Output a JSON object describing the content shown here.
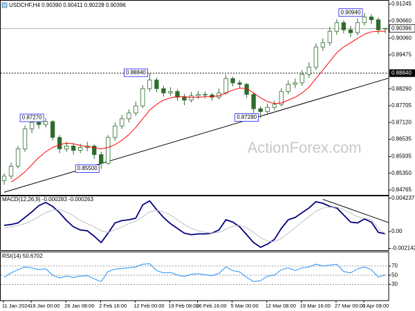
{
  "chart_data": [
    {
      "type": "candlestick",
      "title": "USDCHF,H4 0.90390 0.90411 0.90228 0.90396",
      "open": [
        0.851,
        0.8525,
        0.856,
        0.862,
        0.869,
        0.8712,
        0.8705,
        0.8715,
        0.866,
        0.862,
        0.863,
        0.8615,
        0.8625,
        0.863,
        0.86,
        0.857,
        0.866,
        0.87,
        0.8725,
        0.8745,
        0.877,
        0.883,
        0.886,
        0.883,
        0.8815,
        0.882,
        0.88,
        0.879,
        0.8805,
        0.881,
        0.8808,
        0.88,
        0.8815,
        0.8865,
        0.885,
        0.8845,
        0.881,
        0.876,
        0.875,
        0.8765,
        0.8775,
        0.882,
        0.8845,
        0.885,
        0.888,
        0.8905,
        0.8975,
        0.899,
        0.903,
        0.906,
        0.9035,
        0.9025,
        0.906,
        0.908,
        0.907,
        0.9039
      ],
      "high": [
        0.8535,
        0.8572,
        0.863,
        0.8702,
        0.8722,
        0.872,
        0.8727,
        0.872,
        0.8668,
        0.8645,
        0.864,
        0.8638,
        0.8645,
        0.8636,
        0.861,
        0.8668,
        0.8712,
        0.8738,
        0.8758,
        0.8785,
        0.8842,
        0.8884,
        0.8868,
        0.884,
        0.8835,
        0.8828,
        0.8812,
        0.8818,
        0.8822,
        0.882,
        0.8815,
        0.883,
        0.8878,
        0.8872,
        0.886,
        0.885,
        0.8815,
        0.8768,
        0.8778,
        0.8788,
        0.8832,
        0.8858,
        0.8865,
        0.8895,
        0.8922,
        0.8988,
        0.9005,
        0.9045,
        0.9072,
        0.9068,
        0.9048,
        0.9075,
        0.9094,
        0.909,
        0.9078,
        0.90411
      ],
      "low": [
        0.8495,
        0.8515,
        0.8552,
        0.861,
        0.8675,
        0.869,
        0.8695,
        0.865,
        0.8605,
        0.861,
        0.86,
        0.8605,
        0.8612,
        0.8585,
        0.855,
        0.8565,
        0.8648,
        0.869,
        0.8712,
        0.8735,
        0.8762,
        0.882,
        0.8818,
        0.8802,
        0.8805,
        0.8788,
        0.8772,
        0.8782,
        0.8795,
        0.8796,
        0.8788,
        0.8792,
        0.8808,
        0.8838,
        0.8832,
        0.8798,
        0.8745,
        0.8728,
        0.8738,
        0.8755,
        0.8768,
        0.881,
        0.8832,
        0.884,
        0.8868,
        0.8895,
        0.8962,
        0.898,
        0.9018,
        0.9022,
        0.901,
        0.9015,
        0.905,
        0.9055,
        0.902,
        0.90228
      ],
      "close": [
        0.8525,
        0.856,
        0.862,
        0.869,
        0.8712,
        0.8705,
        0.8715,
        0.866,
        0.862,
        0.863,
        0.8615,
        0.8625,
        0.863,
        0.86,
        0.857,
        0.866,
        0.87,
        0.8725,
        0.8745,
        0.877,
        0.883,
        0.886,
        0.883,
        0.8815,
        0.882,
        0.88,
        0.879,
        0.8805,
        0.881,
        0.8808,
        0.88,
        0.8815,
        0.8865,
        0.885,
        0.8845,
        0.881,
        0.876,
        0.875,
        0.8765,
        0.8775,
        0.882,
        0.8845,
        0.885,
        0.888,
        0.8905,
        0.8975,
        0.899,
        0.903,
        0.906,
        0.9035,
        0.9025,
        0.906,
        0.908,
        0.907,
        0.9035,
        0.90396
      ],
      "up_color": "#ffffff",
      "down_color": "#2e6b2e",
      "outline_color": "#2e6b2e",
      "moving_average": {
        "color": "#ff0000",
        "values": [
          null,
          0.8505,
          0.852,
          0.854,
          0.8565,
          0.859,
          0.861,
          0.8625,
          0.8635,
          0.864,
          0.8638,
          0.8632,
          0.8628,
          0.8625,
          0.862,
          0.8625,
          0.8635,
          0.865,
          0.867,
          0.8695,
          0.8725,
          0.8755,
          0.8775,
          0.879,
          0.8798,
          0.8802,
          0.8802,
          0.88,
          0.88,
          0.8802,
          0.8803,
          0.8805,
          0.8815,
          0.8825,
          0.8832,
          0.883,
          0.8815,
          0.8798,
          0.8785,
          0.8778,
          0.878,
          0.879,
          0.88,
          0.8815,
          0.8835,
          0.8865,
          0.8895,
          0.8925,
          0.8955,
          0.8975,
          0.899,
          0.9005,
          0.902,
          0.9028,
          0.903,
          0.903
        ]
      },
      "ylim": [
        0.84597,
        0.91365
      ],
      "yticks": [
        0.91245,
        {
          "value": 0.9066,
          "label": "0.90660"
        },
        {
          "value": 0.9006,
          "label": "0.90060"
        },
        0.89475,
        {
          "value": 0.8829,
          "label": "0.88290"
        },
        0.87705,
        {
          "value": 0.8712,
          "label": "0.87120"
        },
        0.86535,
        0.85935,
        {
          "value": 0.8535,
          "label": "0.85350"
        },
        0.84765
      ],
      "last_price": 0.90396,
      "horizontal_line": {
        "value": 0.8884,
        "label": "0.88840"
      },
      "annotations": [
        {
          "x": 52,
          "value": 0.9094,
          "label": "0.90940"
        },
        {
          "x": 21,
          "value": 0.8884,
          "label": "0.88840"
        },
        {
          "x": 6,
          "value": 0.8727,
          "label": "0.87270"
        },
        {
          "x": 37,
          "value": 0.8728,
          "label": "0.87280"
        },
        {
          "x": 14,
          "value": 0.855,
          "label": "0.85500"
        }
      ],
      "trendline": {
        "x": [
          0,
          55
        ],
        "y": [
          0.8469,
          0.8863
        ],
        "color": "#000000"
      },
      "watermark": "ActionForex.com",
      "grid": false
    },
    {
      "type": "line",
      "title": "MACD(12,26,9) -0.000283 -0.000263",
      "series": [
        {
          "color": "#000080",
          "values": [
            0.0008,
            0.0009,
            0.0011,
            0.0018,
            0.0025,
            0.0033,
            0.0037,
            0.0032,
            0.0024,
            0.0014,
            0.0006,
            0.0002,
            0.0001,
            -0.0006,
            -0.0014,
            -0.0002,
            0.0011,
            0.0014,
            0.0015,
            0.0017,
            0.0034,
            0.0039,
            0.0028,
            0.0018,
            0.001,
            0.0004,
            -0.0002,
            -0.0004,
            -0.0003,
            -0.0003,
            -0.0002,
            0.0002,
            0.0015,
            0.0012,
            0.0006,
            -0.0004,
            -0.0014,
            -0.002,
            -0.0016,
            -0.001,
            0.0004,
            0.0015,
            0.0018,
            0.0024,
            0.003,
            0.0038,
            0.0036,
            0.0032,
            0.003,
            0.0021,
            0.0012,
            0.0011,
            0.0016,
            0.0012,
            -0.0001,
            -0.000283
          ]
        },
        {
          "color": "#c0c0c0",
          "values": [
            0.0005,
            0.0006,
            0.0008,
            0.001,
            0.0014,
            0.0019,
            0.0024,
            0.0027,
            0.0028,
            0.0025,
            0.002,
            0.0014,
            0.001,
            0.0006,
            0.0001,
            -0.0001,
            0.0002,
            0.0006,
            0.001,
            0.0013,
            0.0019,
            0.0025,
            0.0027,
            0.0025,
            0.0021,
            0.0015,
            0.0009,
            0.0004,
            0.0001,
            -0.0001,
            -0.0002,
            -0.0001,
            0.0003,
            0.0007,
            0.0008,
            0.0005,
            -0.0001,
            -0.0008,
            -0.0012,
            -0.0013,
            -0.0009,
            -0.0002,
            0.0005,
            0.0012,
            0.0019,
            0.0026,
            0.003,
            0.0031,
            0.0031,
            0.0028,
            0.0023,
            0.0019,
            0.0017,
            0.0015,
            0.0004,
            -0.000263
          ]
        }
      ],
      "ylim": [
        -0.00237,
        0.00449
      ],
      "yticks": [
        0.004237,
        {
          "value": 0,
          "label": "0.00"
        },
        -0.002142
      ],
      "trendline": {
        "x": [
          46,
          55
        ],
        "y": [
          0.0041,
          0.0013
        ],
        "color": "#000000"
      },
      "grid": false
    },
    {
      "type": "line",
      "title": "RSI(14) 50.6702",
      "series": [
        {
          "color": "#1e90ff",
          "values": [
            45,
            55,
            62,
            68,
            66,
            62,
            64,
            50,
            44,
            48,
            45,
            48,
            49,
            42,
            36,
            58,
            63,
            65,
            66,
            68,
            74,
            75,
            60,
            55,
            56,
            50,
            47,
            52,
            53,
            51,
            49,
            54,
            68,
            60,
            57,
            45,
            36,
            38,
            48,
            50,
            62,
            66,
            60,
            66,
            68,
            74,
            70,
            72,
            74,
            58,
            55,
            64,
            68,
            62,
            46,
            50.6702
          ]
        }
      ],
      "ylim": [
        -4,
        100
      ],
      "yticks": [
        70,
        50,
        30
      ],
      "grid": true,
      "categories": [
        "11 Jan 2024",
        null,
        null,
        null,
        "19 Jan 00:00",
        null,
        null,
        null,
        null,
        "26 Jan 08:00",
        null,
        null,
        null,
        null,
        "2 Feb 16:00",
        null,
        null,
        null,
        null,
        "12 Feb 00:00",
        null,
        null,
        null,
        null,
        "19 Feb 08:00",
        null,
        null,
        null,
        "26 Feb 16:00",
        null,
        null,
        null,
        null,
        "5 Mar 00:00",
        null,
        null,
        null,
        null,
        "12 Mar 08:00",
        null,
        null,
        null,
        null,
        "19 Mar 16:00",
        null,
        null,
        null,
        null,
        "27 Mar 00:00",
        null,
        null,
        null,
        "3 Apr 08:00",
        null,
        null,
        null
      ]
    }
  ]
}
